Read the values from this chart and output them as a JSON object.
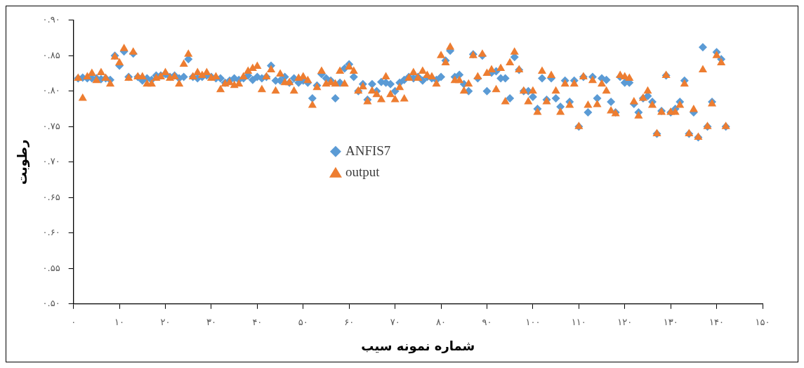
{
  "chart_data": {
    "type": "scatter",
    "xlabel": "شماره نمونه سیب",
    "ylabel": "رطوبت",
    "x": [
      1,
      2,
      3,
      4,
      5,
      6,
      7,
      8,
      9,
      10,
      11,
      12,
      13,
      14,
      15,
      16,
      17,
      18,
      19,
      20,
      21,
      22,
      23,
      24,
      25,
      26,
      27,
      28,
      29,
      30,
      31,
      32,
      33,
      34,
      35,
      36,
      37,
      38,
      39,
      40,
      41,
      42,
      43,
      44,
      45,
      46,
      47,
      48,
      49,
      50,
      51,
      52,
      53,
      54,
      55,
      56,
      57,
      58,
      59,
      60,
      61,
      62,
      63,
      64,
      65,
      66,
      67,
      68,
      69,
      70,
      71,
      72,
      73,
      74,
      75,
      76,
      77,
      78,
      79,
      80,
      81,
      82,
      83,
      84,
      85,
      86,
      87,
      88,
      89,
      90,
      91,
      92,
      93,
      94,
      95,
      96,
      97,
      98,
      99,
      100,
      101,
      102,
      103,
      104,
      105,
      106,
      107,
      108,
      109,
      110,
      111,
      112,
      113,
      114,
      115,
      116,
      117,
      118,
      119,
      120,
      121,
      122,
      123,
      124,
      125,
      126,
      127,
      128,
      129,
      130,
      131,
      132,
      133,
      134,
      135,
      136,
      137,
      138,
      139,
      140,
      141,
      142
    ],
    "series": [
      {
        "name": "ANFIS7",
        "color": "#5b9bd5",
        "marker": "diamond",
        "values": [
          0.818,
          0.819,
          0.818,
          0.818,
          0.818,
          0.817,
          0.818,
          0.816,
          0.85,
          0.836,
          0.856,
          0.82,
          0.853,
          0.82,
          0.815,
          0.818,
          0.816,
          0.822,
          0.822,
          0.824,
          0.82,
          0.822,
          0.818,
          0.82,
          0.845,
          0.82,
          0.818,
          0.82,
          0.822,
          0.82,
          0.818,
          0.818,
          0.812,
          0.815,
          0.818,
          0.816,
          0.818,
          0.822,
          0.816,
          0.82,
          0.818,
          0.82,
          0.836,
          0.815,
          0.815,
          0.82,
          0.812,
          0.818,
          0.812,
          0.815,
          0.812,
          0.79,
          0.808,
          0.824,
          0.818,
          0.815,
          0.79,
          0.812,
          0.832,
          0.838,
          0.82,
          0.8,
          0.81,
          0.788,
          0.81,
          0.8,
          0.813,
          0.812,
          0.81,
          0.8,
          0.812,
          0.816,
          0.82,
          0.818,
          0.82,
          0.815,
          0.82,
          0.818,
          0.816,
          0.82,
          0.843,
          0.857,
          0.82,
          0.823,
          0.81,
          0.8,
          0.852,
          0.818,
          0.85,
          0.8,
          0.826,
          0.828,
          0.818,
          0.818,
          0.79,
          0.848,
          0.83,
          0.8,
          0.8,
          0.792,
          0.775,
          0.818,
          0.788,
          0.818,
          0.79,
          0.778,
          0.815,
          0.785,
          0.815,
          0.75,
          0.82,
          0.77,
          0.82,
          0.79,
          0.818,
          0.816,
          0.785,
          0.77,
          0.82,
          0.812,
          0.812,
          0.782,
          0.77,
          0.79,
          0.793,
          0.785,
          0.74,
          0.772,
          0.822,
          0.77,
          0.775,
          0.785,
          0.815,
          0.74,
          0.77,
          0.735,
          0.862,
          0.75,
          0.785,
          0.855,
          0.845,
          0.75
        ]
      },
      {
        "name": "output",
        "color": "#ed7d31",
        "marker": "triangle",
        "values": [
          0.818,
          0.79,
          0.82,
          0.825,
          0.815,
          0.826,
          0.818,
          0.81,
          0.848,
          0.84,
          0.86,
          0.818,
          0.855,
          0.82,
          0.82,
          0.81,
          0.81,
          0.818,
          0.82,
          0.826,
          0.818,
          0.82,
          0.81,
          0.838,
          0.852,
          0.82,
          0.826,
          0.822,
          0.826,
          0.818,
          0.82,
          0.802,
          0.81,
          0.812,
          0.808,
          0.81,
          0.82,
          0.828,
          0.832,
          0.835,
          0.802,
          0.82,
          0.83,
          0.8,
          0.824,
          0.812,
          0.812,
          0.8,
          0.818,
          0.82,
          0.815,
          0.78,
          0.805,
          0.828,
          0.81,
          0.812,
          0.81,
          0.828,
          0.81,
          0.834,
          0.828,
          0.8,
          0.806,
          0.785,
          0.8,
          0.795,
          0.788,
          0.82,
          0.795,
          0.788,
          0.805,
          0.789,
          0.818,
          0.826,
          0.818,
          0.828,
          0.822,
          0.82,
          0.81,
          0.85,
          0.84,
          0.862,
          0.815,
          0.815,
          0.8,
          0.81,
          0.85,
          0.82,
          0.852,
          0.825,
          0.83,
          0.802,
          0.832,
          0.785,
          0.84,
          0.855,
          0.83,
          0.8,
          0.785,
          0.8,
          0.77,
          0.828,
          0.785,
          0.822,
          0.8,
          0.77,
          0.81,
          0.78,
          0.81,
          0.75,
          0.82,
          0.78,
          0.815,
          0.781,
          0.81,
          0.8,
          0.772,
          0.768,
          0.822,
          0.82,
          0.818,
          0.785,
          0.765,
          0.79,
          0.8,
          0.78,
          0.74,
          0.77,
          0.822,
          0.77,
          0.77,
          0.78,
          0.81,
          0.74,
          0.774,
          0.735,
          0.83,
          0.75,
          0.782,
          0.85,
          0.84,
          0.75
        ]
      }
    ],
    "xlim": [
      0,
      150
    ],
    "xticks": [
      {
        "value": 0,
        "label": "۰"
      },
      {
        "value": 10,
        "label": "۱۰"
      },
      {
        "value": 20,
        "label": "۲۰"
      },
      {
        "value": 30,
        "label": "۳۰"
      },
      {
        "value": 40,
        "label": "۴۰"
      },
      {
        "value": 50,
        "label": "۵۰"
      },
      {
        "value": 60,
        "label": "۶۰"
      },
      {
        "value": 70,
        "label": "۷۰"
      },
      {
        "value": 80,
        "label": "۸۰"
      },
      {
        "value": 90,
        "label": "۹۰"
      },
      {
        "value": 100,
        "label": "۱۰۰"
      },
      {
        "value": 110,
        "label": "۱۱۰"
      },
      {
        "value": 120,
        "label": "۱۲۰"
      },
      {
        "value": 130,
        "label": "۱۳۰"
      },
      {
        "value": 140,
        "label": "۱۴۰"
      },
      {
        "value": 150,
        "label": "۱۵۰"
      }
    ],
    "ylim": [
      0.5,
      0.9
    ],
    "yticks": [
      {
        "value": 0.5,
        "label": "۰.۵۰"
      },
      {
        "value": 0.55,
        "label": "۰.۵۵"
      },
      {
        "value": 0.6,
        "label": "۰.۶۰"
      },
      {
        "value": 0.65,
        "label": "۰.۶۵"
      },
      {
        "value": 0.7,
        "label": "۰.۷۰"
      },
      {
        "value": 0.75,
        "label": "۰.۷۵"
      },
      {
        "value": 0.8,
        "label": "۰.۸۰"
      },
      {
        "value": 0.85,
        "label": "۰.۸۵"
      },
      {
        "value": 0.9,
        "label": "۰.۹۰"
      }
    ],
    "grid": false,
    "legend": "center left"
  }
}
